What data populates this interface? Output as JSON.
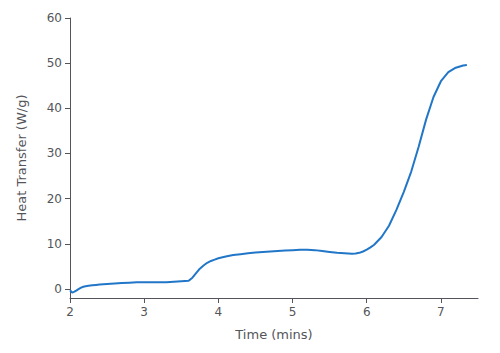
{
  "chart_data": {
    "type": "line",
    "xlabel": "Time (mins)",
    "ylabel": "Heat Transfer (W/g)",
    "color": "#2176c8",
    "xlim": [
      2,
      7.5
    ],
    "ylim": [
      -2,
      60
    ],
    "xticks": [
      2,
      3,
      4,
      5,
      6,
      7
    ],
    "yticks": [
      0,
      10,
      20,
      30,
      40,
      50,
      60
    ],
    "grid": false,
    "x": [
      2.0,
      2.03,
      2.06,
      2.09,
      2.12,
      2.15,
      2.18,
      2.21,
      2.25,
      2.3,
      2.35,
      2.4,
      2.5,
      2.6,
      2.7,
      2.8,
      2.9,
      3.0,
      3.1,
      3.2,
      3.3,
      3.4,
      3.5,
      3.6,
      3.65,
      3.7,
      3.75,
      3.8,
      3.85,
      3.9,
      3.95,
      4.0,
      4.1,
      4.2,
      4.3,
      4.4,
      4.5,
      4.6,
      4.7,
      4.8,
      4.9,
      5.0,
      5.1,
      5.2,
      5.3,
      5.4,
      5.5,
      5.6,
      5.7,
      5.75,
      5.8,
      5.85,
      5.9,
      5.95,
      6.0,
      6.05,
      6.1,
      6.2,
      6.3,
      6.4,
      6.5,
      6.6,
      6.7,
      6.8,
      6.9,
      7.0,
      7.1,
      7.2,
      7.3,
      7.35
    ],
    "values": [
      -0.3,
      -0.8,
      -0.6,
      -0.3,
      0.0,
      0.3,
      0.5,
      0.6,
      0.7,
      0.8,
      0.9,
      1.0,
      1.1,
      1.2,
      1.3,
      1.4,
      1.5,
      1.5,
      1.5,
      1.5,
      1.5,
      1.6,
      1.7,
      1.8,
      2.5,
      3.5,
      4.5,
      5.2,
      5.8,
      6.2,
      6.5,
      6.8,
      7.2,
      7.5,
      7.7,
      7.9,
      8.1,
      8.2,
      8.3,
      8.4,
      8.5,
      8.6,
      8.7,
      8.7,
      8.6,
      8.4,
      8.2,
      8.0,
      7.9,
      7.85,
      7.8,
      7.85,
      8.0,
      8.3,
      8.7,
      9.2,
      9.8,
      11.5,
      14.0,
      17.5,
      21.5,
      26.0,
      31.5,
      37.5,
      42.5,
      46.0,
      48.0,
      49.0,
      49.5,
      49.6
    ]
  }
}
